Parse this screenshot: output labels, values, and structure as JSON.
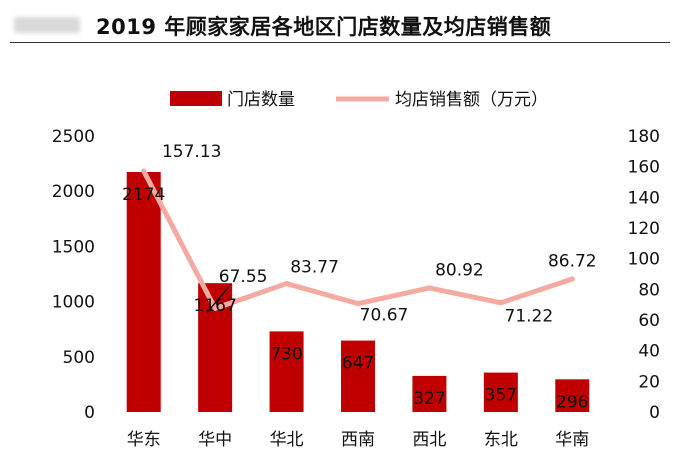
{
  "header": {
    "title": "2019 年顾家家居各地区门店数量及均店销售额"
  },
  "chart_data": {
    "type": "bar",
    "title": "2019 年顾家家居各地区门店数量及均店销售额",
    "categories": [
      "华东",
      "华中",
      "华北",
      "西南",
      "西北",
      "东北",
      "华南"
    ],
    "series": [
      {
        "name": "门店数量",
        "type": "bar",
        "axis": "left",
        "values": [
          2174,
          1167,
          730,
          647,
          327,
          357,
          296
        ],
        "labels": [
          "2174",
          "1167",
          "730",
          "647",
          "327",
          "357",
          "296"
        ]
      },
      {
        "name": "均店销售额（万元）",
        "type": "line",
        "axis": "right",
        "values": [
          157.13,
          67.55,
          83.77,
          70.67,
          80.92,
          71.22,
          86.72
        ],
        "labels": [
          "157.13",
          "67.55",
          "83.77",
          "70.67",
          "80.92",
          "71.22",
          "86.72"
        ]
      }
    ],
    "y_left": {
      "ylim": [
        0,
        2500
      ],
      "ticks": [
        "0",
        "500",
        "1000",
        "1500",
        "2000",
        "2500"
      ]
    },
    "y_right": {
      "ylim": [
        0,
        180
      ],
      "ticks": [
        "0",
        "20",
        "40",
        "60",
        "80",
        "100",
        "120",
        "140",
        "160",
        "180"
      ]
    },
    "grid": false,
    "legend_position": "top",
    "colors": {
      "bar": "#c00000",
      "line": "#f4aaa0",
      "leader": "#111111"
    }
  }
}
